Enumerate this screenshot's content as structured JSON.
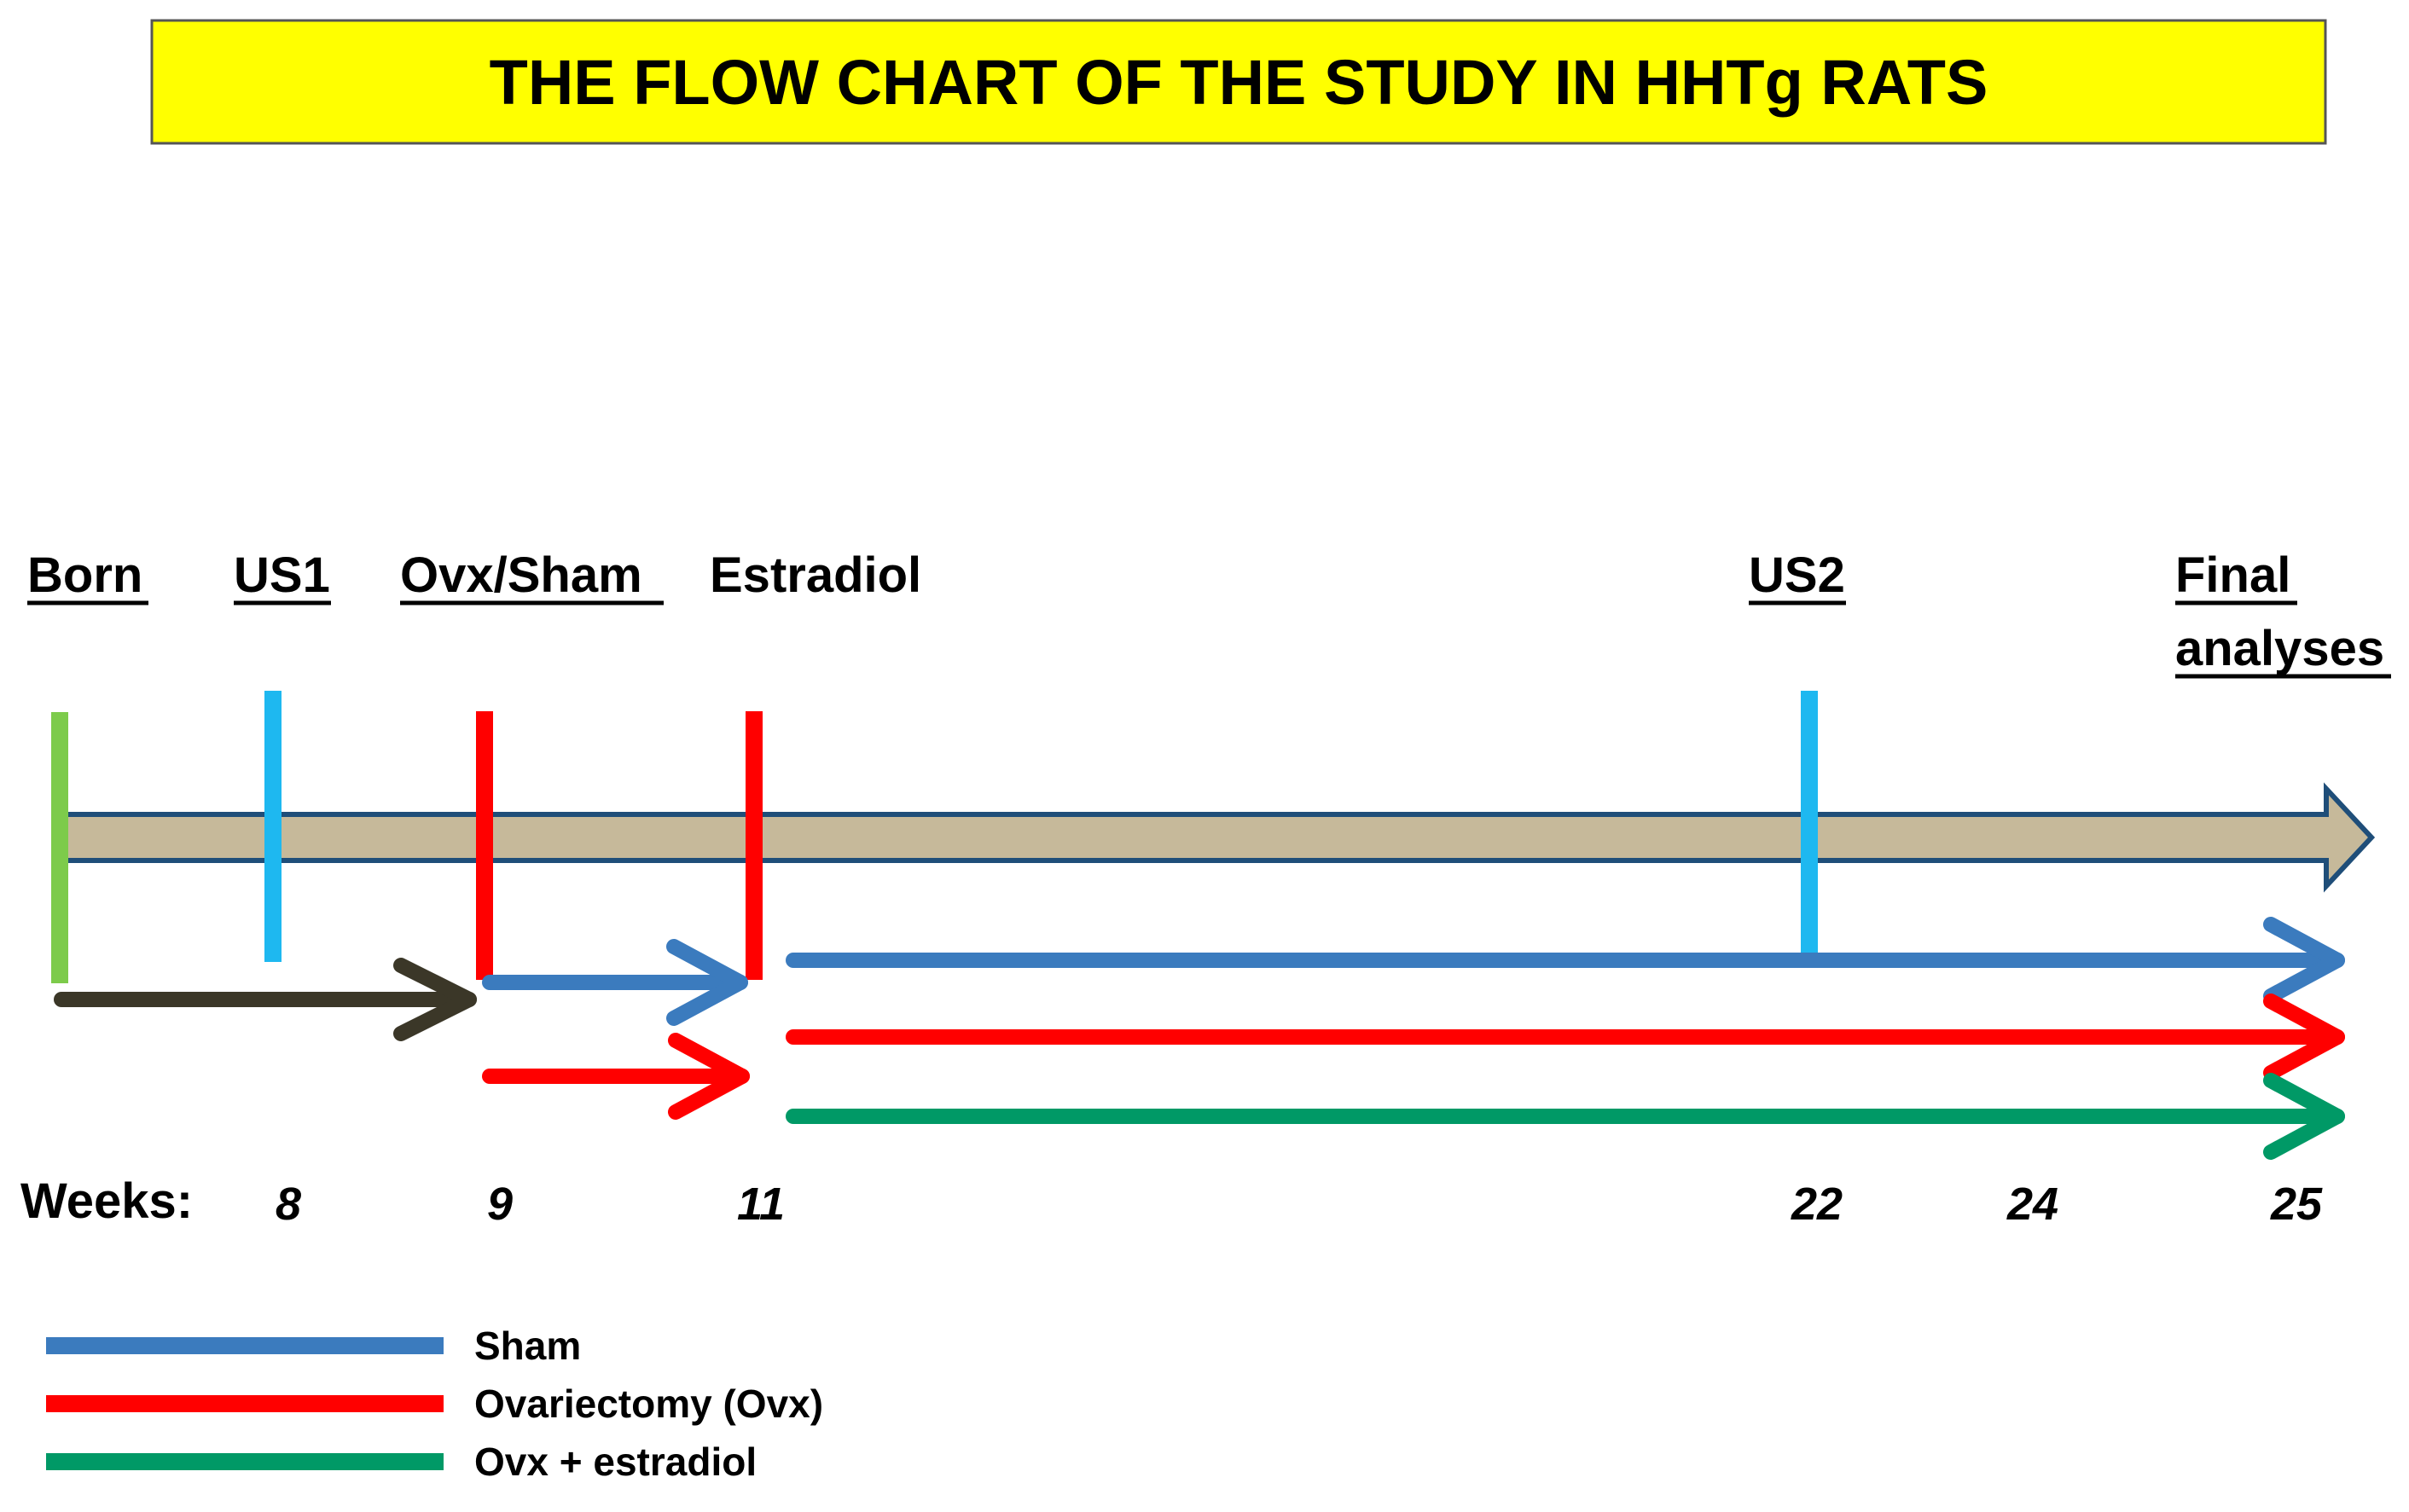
{
  "title": "THE FLOW CHART OF THE STUDY IN HHTg RATS",
  "events": [
    {
      "label": "Born",
      "underline": true
    },
    {
      "label": "US1",
      "underline": true
    },
    {
      "label": "Ovx/Sham",
      "underline": true
    },
    {
      "label": "Estradiol",
      "underline": false
    },
    {
      "label": "US2",
      "underline": true
    },
    {
      "label_lines": [
        "Final",
        "analyses"
      ],
      "underline": true
    }
  ],
  "weeks": {
    "label": "Weeks:",
    "ticks": [
      "8",
      "9",
      "11",
      "22",
      "24",
      "25"
    ]
  },
  "legend": [
    {
      "label": "Sham",
      "color": "#3B7BBE"
    },
    {
      "label": "Ovariectomy (Ovx)",
      "color": "#FF0000"
    },
    {
      "label": "Ovx + estradiol",
      "color": "#009966"
    }
  ],
  "colors": {
    "title_bg": "#FFFF00",
    "timeline_fill": "#C6B99A",
    "timeline_outline": "#1F4E79",
    "born_marker": "#7DCB4B",
    "us_marker": "#1EB8F0",
    "ovx_marker": "#FF0000",
    "pre_treatment_arrow": "#3B3728",
    "sham": "#3B7BBE",
    "ovx": "#FF0000",
    "ovx_estradiol": "#009966"
  }
}
